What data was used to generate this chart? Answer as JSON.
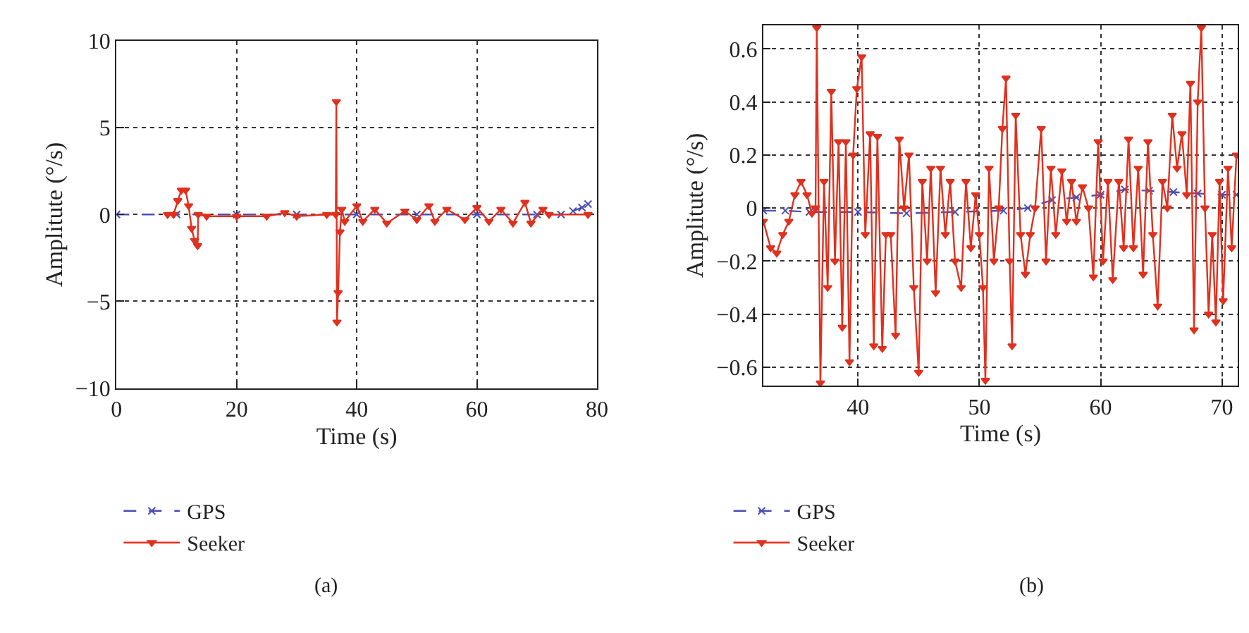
{
  "chart_data": [
    {
      "type": "line",
      "xlabel": "Time (s)",
      "ylabel": "Amplitute (°/s)",
      "xlim": [
        0,
        80
      ],
      "xticks": [
        0,
        20,
        40,
        60,
        80
      ],
      "ylim": [
        -10,
        10
      ],
      "yticks": [
        -10,
        -5,
        0,
        5,
        10
      ],
      "grid": true,
      "legend": "bottom",
      "annotations": [
        "(a)"
      ],
      "series": [
        {
          "name": "GPS",
          "color": "#4a4fb5",
          "marker": "cross",
          "line_style": "dashed",
          "x": [
            0,
            10,
            20,
            30,
            40,
            50,
            60,
            70,
            74,
            76,
            77.5,
            78.5
          ],
          "values": [
            0,
            0,
            0,
            0,
            0,
            0,
            0,
            0,
            0,
            0.2,
            0.4,
            0.6
          ]
        },
        {
          "name": "Seeker",
          "color": "#e0301e",
          "marker": "triangle",
          "line_style": "solid",
          "x": [
            8.5,
            9.5,
            10.2,
            10.8,
            11.5,
            12,
            12.5,
            13,
            13.5,
            13.6,
            15,
            20,
            25,
            28,
            30,
            35,
            36.5,
            36.6,
            36.7,
            36.9,
            37.2,
            37.5,
            38,
            40,
            41,
            43,
            45,
            48,
            50,
            52,
            53,
            55,
            58,
            60,
            62,
            64,
            66,
            68,
            69,
            71,
            72,
            78.5
          ],
          "values": [
            0,
            0,
            0.8,
            1.4,
            1.4,
            0.5,
            -0.8,
            -1.5,
            -1.8,
            0,
            -0.1,
            -0.1,
            -0.1,
            0.1,
            -0.1,
            0,
            0,
            6.5,
            -6.2,
            -4.5,
            -1,
            0.3,
            -0.4,
            0.5,
            -0.4,
            0.3,
            -0.5,
            0.2,
            -0.3,
            0.5,
            -0.4,
            0.3,
            -0.3,
            0.4,
            -0.4,
            0.3,
            -0.5,
            0.7,
            -0.5,
            0.3,
            0,
            0
          ]
        }
      ]
    },
    {
      "type": "line",
      "xlabel": "Time (s)",
      "ylabel": "Amplitute (°/s)",
      "xlim": [
        32.2,
        71.3
      ],
      "xticks": [
        40,
        50,
        60,
        70
      ],
      "ylim": [
        -0.67,
        0.69
      ],
      "yticks": [
        -0.6,
        -0.4,
        -0.2,
        0,
        0.2,
        0.4,
        0.6
      ],
      "grid": true,
      "legend": "bottom",
      "annotations": [
        "(b)"
      ],
      "series": [
        {
          "name": "GPS",
          "color": "#4a4fb5",
          "marker": "cross",
          "line_style": "dashed",
          "x": [
            32.2,
            34,
            36,
            40,
            44,
            48,
            52,
            54,
            56,
            58,
            60,
            62,
            64,
            66,
            68,
            70,
            71.2
          ],
          "values": [
            -0.01,
            -0.01,
            -0.015,
            -0.015,
            -0.02,
            -0.015,
            -0.01,
            0,
            0.03,
            0.04,
            0.05,
            0.07,
            0.065,
            0.06,
            0.055,
            0.05,
            0.05
          ]
        },
        {
          "name": "Seeker",
          "color": "#e0301e",
          "marker": "triangle",
          "line_style": "solid",
          "x": [
            32.2,
            32.8,
            33.3,
            33.8,
            34.3,
            34.8,
            35.3,
            35.8,
            36.2,
            36.5,
            36.6,
            36.9,
            37.2,
            37.5,
            37.8,
            38.1,
            38.4,
            38.7,
            39.0,
            39.3,
            39.6,
            39.9,
            40.3,
            40.6,
            41.0,
            41.3,
            41.6,
            42.0,
            42.3,
            42.7,
            43.1,
            43.4,
            43.8,
            44.2,
            44.6,
            45.0,
            45.3,
            45.7,
            46.0,
            46.4,
            46.8,
            47.2,
            47.6,
            48.0,
            48.5,
            48.9,
            49.3,
            49.7,
            50.0,
            50.3,
            50.5,
            50.8,
            51.2,
            51.6,
            51.9,
            52.2,
            52.5,
            52.7,
            53.0,
            53.4,
            53.8,
            54.2,
            54.6,
            55.1,
            55.5,
            55.9,
            56.3,
            56.8,
            57.2,
            57.6,
            58.0,
            58.5,
            59.0,
            59.4,
            59.8,
            60.2,
            60.6,
            61.0,
            61.5,
            61.9,
            62.3,
            62.7,
            63.1,
            63.5,
            63.9,
            64.3,
            64.7,
            65.1,
            65.5,
            65.9,
            66.3,
            66.7,
            67.1,
            67.4,
            67.7,
            68.0,
            68.3,
            68.6,
            68.9,
            69.2,
            69.5,
            69.8,
            70.1,
            70.5,
            70.8,
            71.2
          ],
          "values": [
            -0.05,
            -0.15,
            -0.17,
            -0.1,
            -0.05,
            0.05,
            0.1,
            0.05,
            -0.02,
            0,
            0.68,
            -0.66,
            0.1,
            -0.3,
            0.44,
            -0.2,
            0.25,
            -0.45,
            0.25,
            -0.58,
            0.2,
            0.45,
            0.57,
            -0.1,
            0.28,
            -0.52,
            0.27,
            -0.53,
            -0.1,
            -0.1,
            -0.48,
            0.26,
            0,
            0.2,
            -0.3,
            -0.62,
            0.1,
            -0.2,
            0.15,
            -0.32,
            0.15,
            -0.1,
            0.1,
            -0.2,
            -0.3,
            0.1,
            -0.15,
            0.05,
            -0.1,
            -0.3,
            -0.65,
            0.15,
            -0.2,
            0,
            0.3,
            0.49,
            -0.2,
            -0.52,
            0.35,
            -0.1,
            -0.25,
            -0.1,
            0,
            0.3,
            -0.2,
            0.15,
            -0.1,
            0.14,
            -0.05,
            0.1,
            -0.05,
            0.08,
            0,
            -0.26,
            0.25,
            -0.2,
            0.1,
            -0.27,
            0.1,
            -0.15,
            0.26,
            -0.15,
            0.15,
            -0.25,
            0.25,
            -0.1,
            -0.37,
            0.1,
            0,
            0.35,
            0.15,
            0.28,
            0.05,
            0.47,
            -0.46,
            0.4,
            0.68,
            0,
            -0.4,
            -0.1,
            -0.43,
            0.1,
            -0.35,
            0.15,
            -0.15,
            0.2
          ]
        }
      ]
    }
  ]
}
